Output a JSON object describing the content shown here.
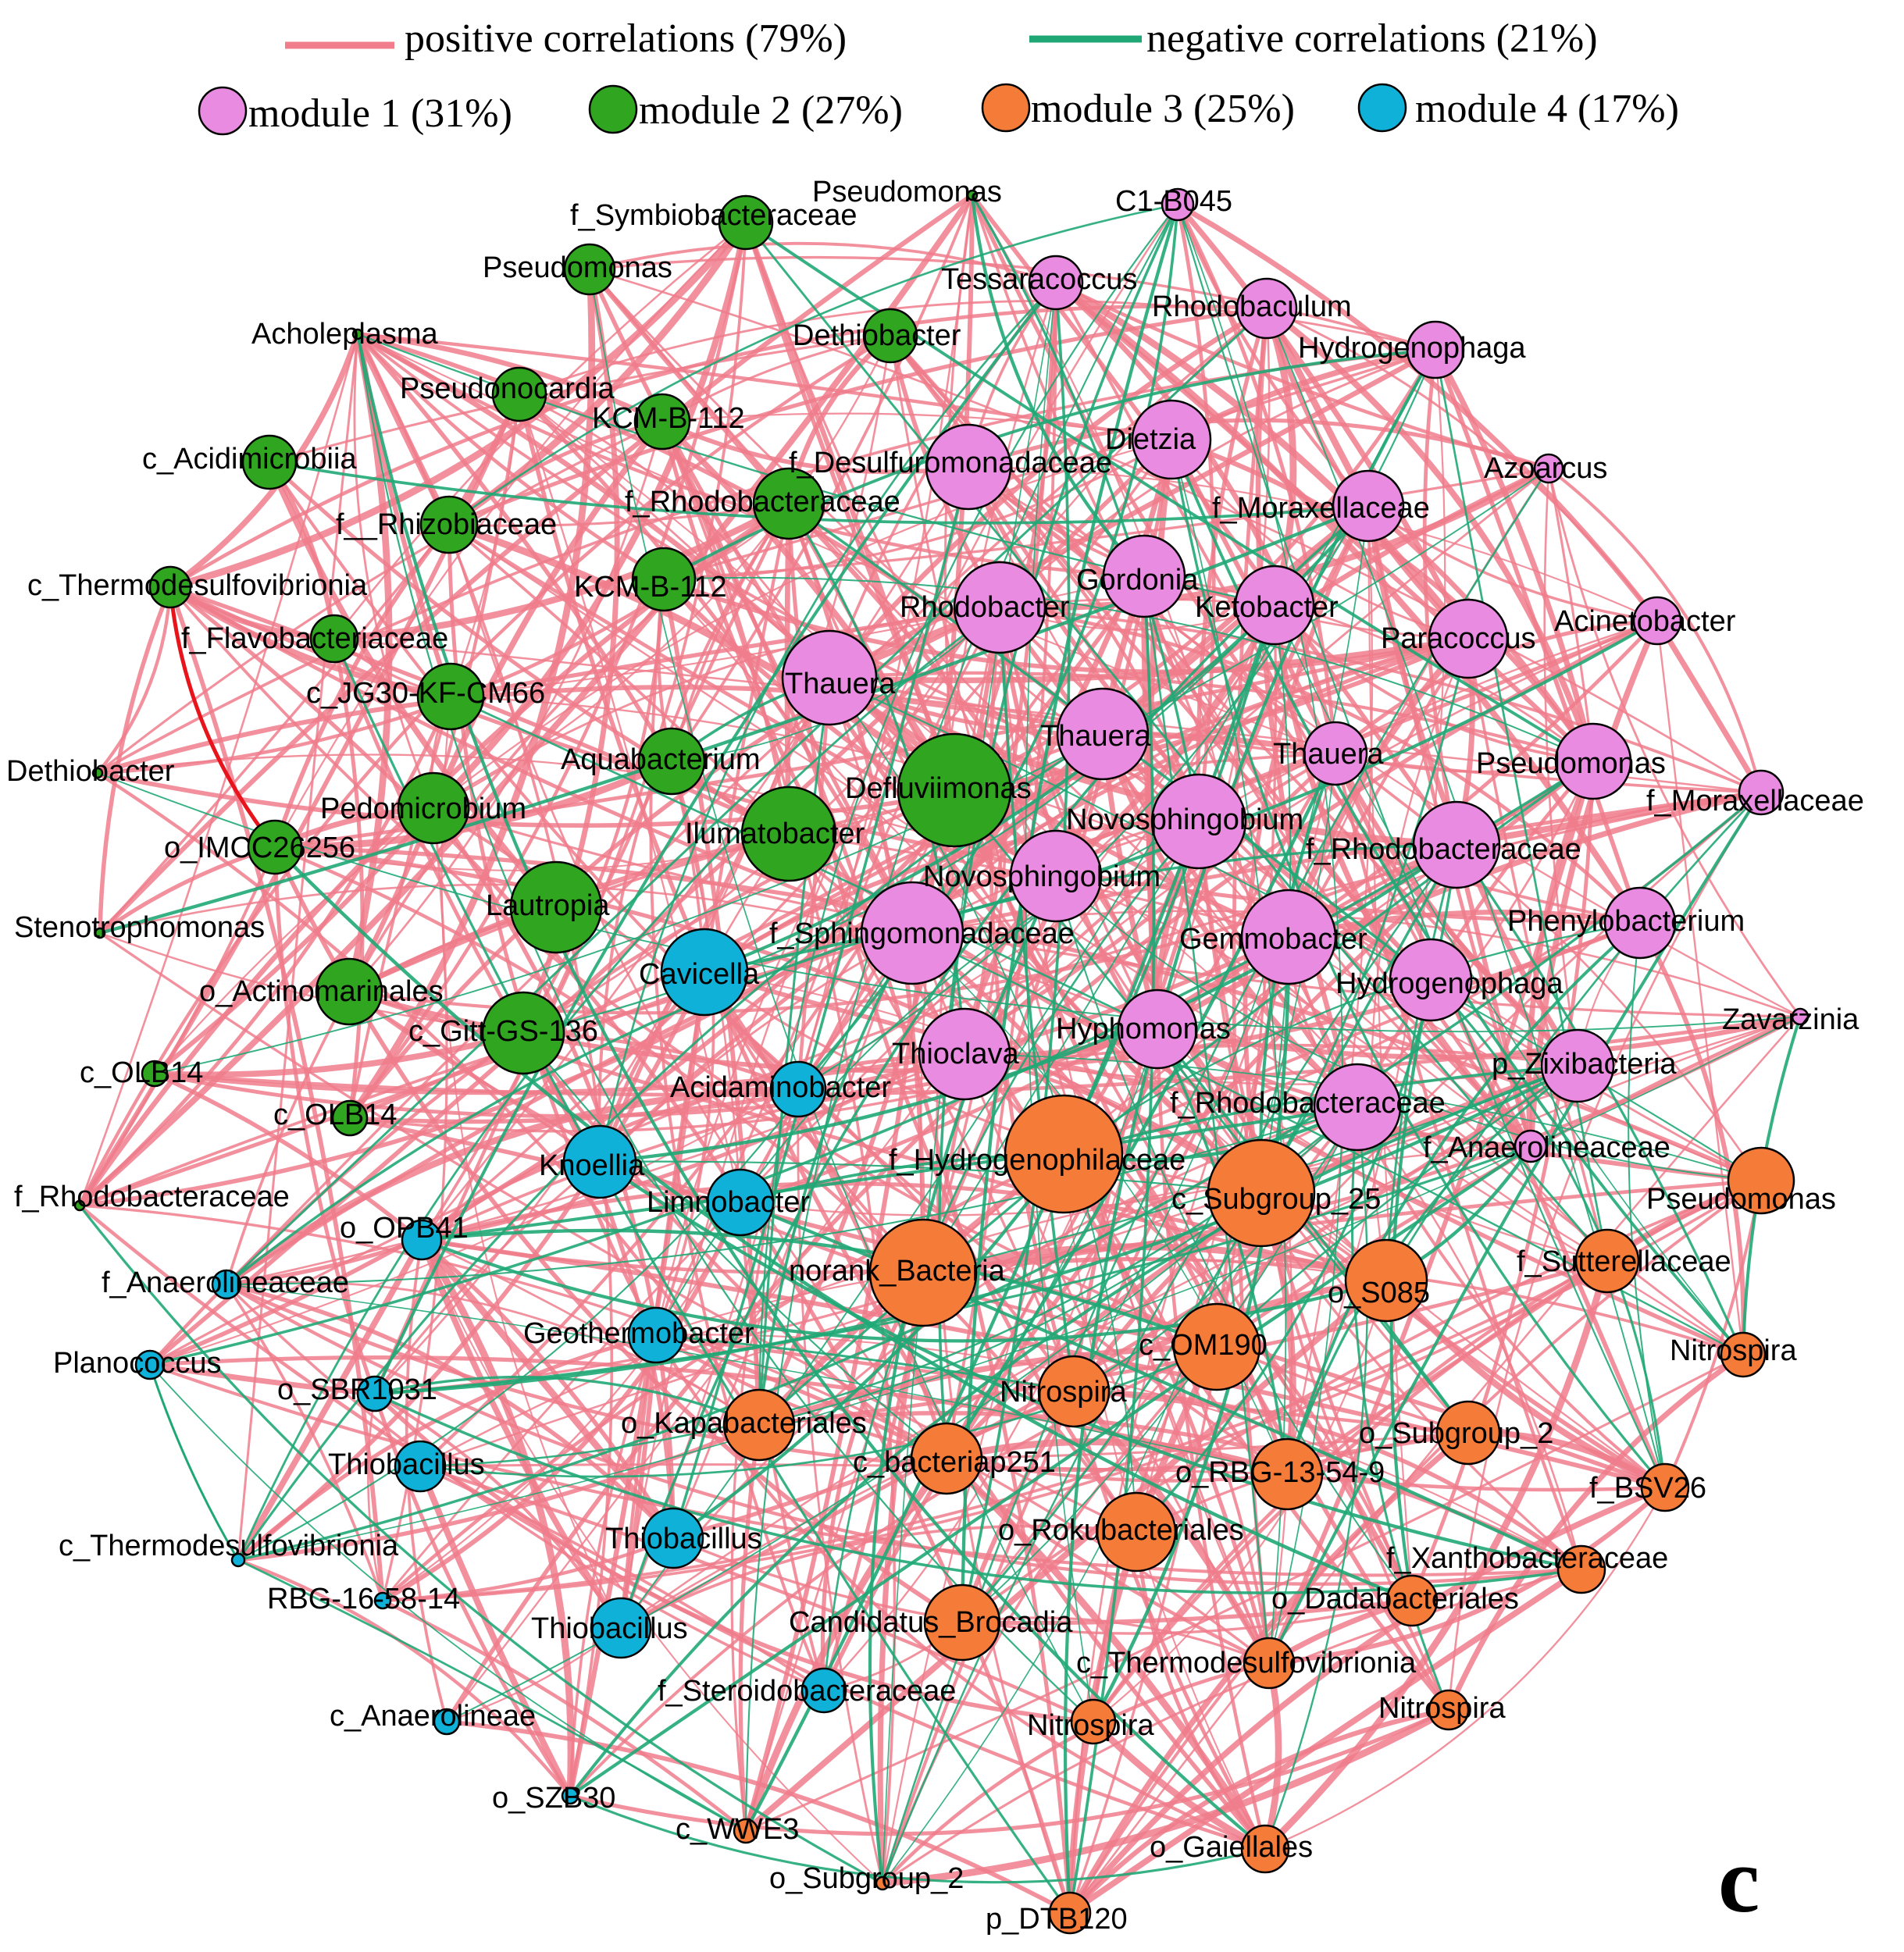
{
  "legend": {
    "positive_label": "positive correlations (79%)",
    "negative_label": "negative correlations (21%)",
    "module1_label": "module 1 (31%)",
    "module2_label": "module 2 (27%)",
    "module3_label": "module 3 (25%)",
    "module4_label": "module 4 (17%)"
  },
  "panel_letter": "c",
  "colors": {
    "positive": "#f07c8c",
    "negative": "#1fa876",
    "strong": "#e8141c",
    "module1": "#e98be0",
    "module2": "#30a51f",
    "module3": "#f47b38",
    "module4": "#10b1d8"
  },
  "nodes": [
    {
      "id": "m2a",
      "label": "f_Symbiobacteraceae",
      "module": 2
    },
    {
      "id": "m2b",
      "label": "Pseudomonas",
      "module": 2
    },
    {
      "id": "m2c",
      "label": "Pseudomonas",
      "module": 2
    },
    {
      "id": "m2d",
      "label": "Acholeplasma",
      "module": 2
    },
    {
      "id": "m2e",
      "label": "Dethiobacter",
      "module": 2
    },
    {
      "id": "m2f",
      "label": "Pseudonocardia",
      "module": 2
    },
    {
      "id": "m2g",
      "label": "KCM-B-112",
      "module": 2
    },
    {
      "id": "m2h",
      "label": "c_Acidimicrobiia",
      "module": 2
    },
    {
      "id": "m2i",
      "label": "f_Rhodobacteraceae",
      "module": 2
    },
    {
      "id": "m2j",
      "label": "f__Rhizobiaceae",
      "module": 2
    },
    {
      "id": "m2k",
      "label": "c_Thermodesulfovibrionia",
      "module": 2
    },
    {
      "id": "m2l",
      "label": "KCM-B-112",
      "module": 2
    },
    {
      "id": "m2m",
      "label": "f_Flavobacteriaceae",
      "module": 2
    },
    {
      "id": "m2n",
      "label": "c_JG30-KF-CM66",
      "module": 2
    },
    {
      "id": "m2o",
      "label": "Dethiobacter",
      "module": 2
    },
    {
      "id": "m2p",
      "label": "Aquabacterium",
      "module": 2
    },
    {
      "id": "m2q",
      "label": "Defluviimonas",
      "module": 2
    },
    {
      "id": "m2r",
      "label": "Pedomicrobium",
      "module": 2
    },
    {
      "id": "m2s",
      "label": "Ilumatobacter",
      "module": 2
    },
    {
      "id": "m2t",
      "label": "o_IMCC26256",
      "module": 2
    },
    {
      "id": "m2u",
      "label": "Lautropia",
      "module": 2
    },
    {
      "id": "m2v",
      "label": "Stenotrophomonas",
      "module": 2
    },
    {
      "id": "m2w",
      "label": "o_Actinomarinales",
      "module": 2
    },
    {
      "id": "m2x",
      "label": "c_Gitt-GS-136",
      "module": 2
    },
    {
      "id": "m2y",
      "label": "c_OLB14",
      "module": 2
    },
    {
      "id": "m2z",
      "label": "c_OLB14",
      "module": 2
    },
    {
      "id": "m2aa",
      "label": "f_Rhodobacteraceae",
      "module": 2
    },
    {
      "id": "m1a",
      "label": "C1-B045",
      "module": 1
    },
    {
      "id": "m1b",
      "label": "Tessaracoccus",
      "module": 1
    },
    {
      "id": "m1c",
      "label": "Rhodobaculum",
      "module": 1
    },
    {
      "id": "m1d",
      "label": "Hydrogenophaga",
      "module": 1
    },
    {
      "id": "m1e",
      "label": "Dietzia",
      "module": 1
    },
    {
      "id": "m1f",
      "label": "f_Desulfuromonadaceae",
      "module": 1
    },
    {
      "id": "m1g",
      "label": "Azoarcus",
      "module": 1
    },
    {
      "id": "m1h",
      "label": "f_Moraxellaceae",
      "module": 1
    },
    {
      "id": "m1i",
      "label": "Gordonia",
      "module": 1
    },
    {
      "id": "m1j",
      "label": "Rhodobacter",
      "module": 1
    },
    {
      "id": "m1k",
      "label": "Ketobacter",
      "module": 1
    },
    {
      "id": "m1l",
      "label": "Paracoccus",
      "module": 1
    },
    {
      "id": "m1m",
      "label": "Acinetobacter",
      "module": 1
    },
    {
      "id": "m1n",
      "label": "Thauera",
      "module": 1
    },
    {
      "id": "m1o",
      "label": "Thauera",
      "module": 1
    },
    {
      "id": "m1p",
      "label": "Thauera",
      "module": 1
    },
    {
      "id": "m1q",
      "label": "Pseudomonas",
      "module": 1
    },
    {
      "id": "m1r",
      "label": "f_Moraxellaceae",
      "module": 1
    },
    {
      "id": "m1s",
      "label": "Novosphingobium",
      "module": 1
    },
    {
      "id": "m1t",
      "label": "f_Rhodobacteraceae",
      "module": 1
    },
    {
      "id": "m1u",
      "label": "Novosphingobium",
      "module": 1
    },
    {
      "id": "m1v",
      "label": "f_Sphingomonadaceae",
      "module": 1
    },
    {
      "id": "m1w",
      "label": "Gemmobacter",
      "module": 1
    },
    {
      "id": "m1x",
      "label": "Phenylobacterium",
      "module": 1
    },
    {
      "id": "m1y",
      "label": "Hydrogenophaga",
      "module": 1
    },
    {
      "id": "m1z",
      "label": "Zavarzinia",
      "module": 1
    },
    {
      "id": "m1aa",
      "label": "Hyphomonas",
      "module": 1
    },
    {
      "id": "m1bb",
      "label": "Thioclava",
      "module": 1
    },
    {
      "id": "m1cc",
      "label": "p_Zixibacteria",
      "module": 1
    },
    {
      "id": "m1dd",
      "label": "f_Rhodobacteraceae",
      "module": 1
    },
    {
      "id": "m1ee",
      "label": "f_Anaerolineaceae",
      "module": 1
    },
    {
      "id": "m3a",
      "label": "f_Hydrogenophilaceae",
      "module": 3
    },
    {
      "id": "m3b",
      "label": "c_Subgroup_25",
      "module": 3
    },
    {
      "id": "m3c",
      "label": "Pseudomonas",
      "module": 3
    },
    {
      "id": "m3d",
      "label": "f_Sutterellaceae",
      "module": 3
    },
    {
      "id": "m3e",
      "label": "norank_Bacteria",
      "module": 3
    },
    {
      "id": "m3f",
      "label": "o_S085",
      "module": 3
    },
    {
      "id": "m3g",
      "label": "c_OM190",
      "module": 3
    },
    {
      "id": "m3h",
      "label": "Nitrospira",
      "module": 3
    },
    {
      "id": "m3i",
      "label": "Nitrospira",
      "module": 3
    },
    {
      "id": "m3j",
      "label": "o_Kapabacteriales",
      "module": 3
    },
    {
      "id": "m3k",
      "label": "o_Subgroup_2",
      "module": 3
    },
    {
      "id": "m3l",
      "label": "c_bacteriap251",
      "module": 3
    },
    {
      "id": "m3m",
      "label": "o_RBG-13-54-9",
      "module": 3
    },
    {
      "id": "m3n",
      "label": "f_BSV26",
      "module": 3
    },
    {
      "id": "m3o",
      "label": "o_Rokubacteriales",
      "module": 3
    },
    {
      "id": "m3p",
      "label": "f_Xanthobacteraceae",
      "module": 3
    },
    {
      "id": "m3q",
      "label": "o_Dadabacteriales",
      "module": 3
    },
    {
      "id": "m3r",
      "label": "Candidatus_Brocadia",
      "module": 3
    },
    {
      "id": "m3s",
      "label": "c_Thermodesulfovibrionia",
      "module": 3
    },
    {
      "id": "m3t",
      "label": "Nitrospira",
      "module": 3
    },
    {
      "id": "m3u",
      "label": "Nitrospira",
      "module": 3
    },
    {
      "id": "m3v",
      "label": "c_WWE3",
      "module": 3
    },
    {
      "id": "m3w",
      "label": "o_Gaiellales",
      "module": 3
    },
    {
      "id": "m3x",
      "label": "o_Subgroup_2",
      "module": 3
    },
    {
      "id": "m3y",
      "label": "p_DTB120",
      "module": 3
    },
    {
      "id": "m4a",
      "label": "Cavicella",
      "module": 4
    },
    {
      "id": "m4b",
      "label": "Acidaminobacter",
      "module": 4
    },
    {
      "id": "m4c",
      "label": "Knoellia",
      "module": 4
    },
    {
      "id": "m4d",
      "label": "Limnobacter",
      "module": 4
    },
    {
      "id": "m4e",
      "label": "o_OPB41",
      "module": 4
    },
    {
      "id": "m4f",
      "label": "f_Anaerolineaceae",
      "module": 4
    },
    {
      "id": "m4g",
      "label": "Geothermobacter",
      "module": 4
    },
    {
      "id": "m4h",
      "label": "Planococcus",
      "module": 4
    },
    {
      "id": "m4i",
      "label": "o_SBR1031",
      "module": 4
    },
    {
      "id": "m4j",
      "label": "Thiobacillus",
      "module": 4
    },
    {
      "id": "m4k",
      "label": "Thiobacillus",
      "module": 4
    },
    {
      "id": "m4l",
      "label": "c_Thermodesulfovibrionia",
      "module": 4
    },
    {
      "id": "m4m",
      "label": "RBG-16-58-14",
      "module": 4
    },
    {
      "id": "m4n",
      "label": "Thiobacillus",
      "module": 4
    },
    {
      "id": "m4o",
      "label": "f_Steroidobacteraceae",
      "module": 4
    },
    {
      "id": "m4p",
      "label": "c_Anaerolineae",
      "module": 4
    },
    {
      "id": "m4q",
      "label": "o_SZB30",
      "module": 4
    }
  ]
}
